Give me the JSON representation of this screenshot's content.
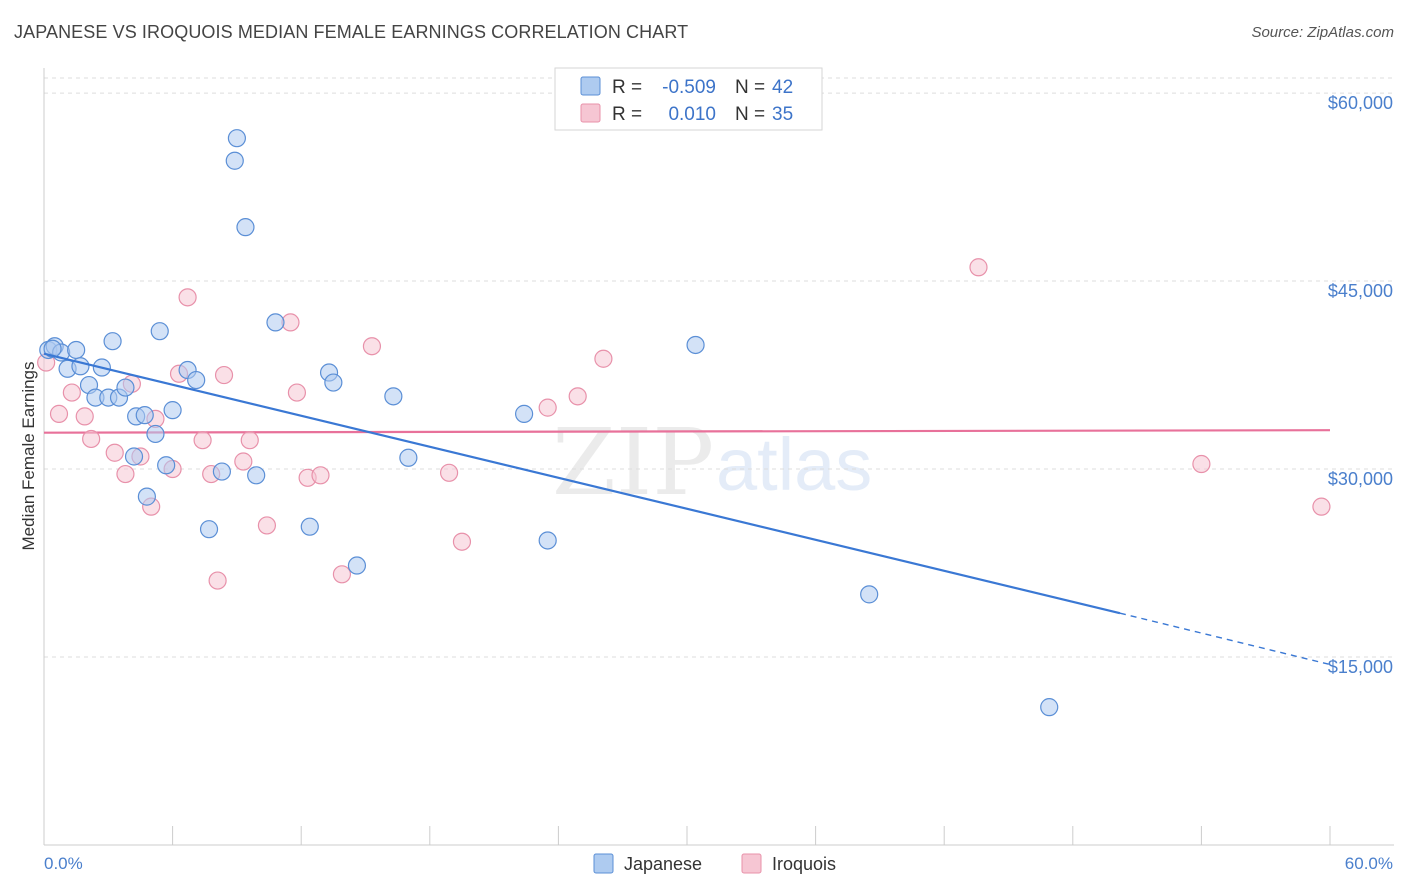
{
  "title": "JAPANESE VS IROQUOIS MEDIAN FEMALE EARNINGS CORRELATION CHART",
  "source": "Source: ZipAtlas.com",
  "colors": {
    "japanese_fill": "#aecbf0",
    "japanese_stroke": "#5b8fd6",
    "japanese_line": "#3a78d4",
    "iroquois_fill": "#f6c6d3",
    "iroquois_stroke": "#e891aa",
    "iroquois_line": "#e8719a",
    "tick_text": "#4a7fcc",
    "grid": "#dddddd"
  },
  "legend": {
    "rows": [
      {
        "r_label": "R =",
        "r_value": "-0.509",
        "n_label": "N =",
        "n_value": "42",
        "series": "japanese"
      },
      {
        "r_label": "R =",
        "r_value": "0.010",
        "n_label": "N =",
        "n_value": "35",
        "series": "iroquois"
      }
    ]
  },
  "watermark": {
    "zip": "ZIP",
    "atlas": "atlas"
  },
  "chart_data": {
    "type": "scatter",
    "title": "JAPANESE VS IROQUOIS MEDIAN FEMALE EARNINGS CORRELATION CHART",
    "xlabel": "",
    "ylabel": "Median Female Earnings",
    "xlim": [
      0,
      60
    ],
    "ylim": [
      0,
      62000
    ],
    "x_tick_labels": [
      "0.0%",
      "60.0%"
    ],
    "y_ticks": [
      15000,
      30000,
      45000,
      60000
    ],
    "y_tick_labels": [
      "$15,000",
      "$30,000",
      "$45,000",
      "$60,000"
    ],
    "grid": true,
    "legend_position": "top-center",
    "series": [
      {
        "name": "Japanese",
        "r": -0.509,
        "n": 42,
        "trend": {
          "x0": 0,
          "y0": 39200,
          "x1": 50.2,
          "y1": 18500,
          "dashed_to_x": 60,
          "dashed_to_y": 14400
        },
        "points": [
          [
            0.2,
            39500
          ],
          [
            0.5,
            39800
          ],
          [
            0.8,
            39300
          ],
          [
            1.1,
            38000
          ],
          [
            1.5,
            39500
          ],
          [
            1.7,
            38200
          ],
          [
            2.1,
            36700
          ],
          [
            2.4,
            35700
          ],
          [
            2.7,
            38100
          ],
          [
            3.0,
            35700
          ],
          [
            3.2,
            40200
          ],
          [
            3.5,
            35700
          ],
          [
            3.8,
            36500
          ],
          [
            4.2,
            31000
          ],
          [
            4.3,
            34200
          ],
          [
            4.7,
            34300
          ],
          [
            4.8,
            27800
          ],
          [
            5.2,
            32800
          ],
          [
            5.4,
            41000
          ],
          [
            5.7,
            30300
          ],
          [
            6.0,
            34700
          ],
          [
            6.7,
            37900
          ],
          [
            7.1,
            37100
          ],
          [
            7.7,
            25200
          ],
          [
            8.3,
            29800
          ],
          [
            8.9,
            54600
          ],
          [
            9.0,
            56400
          ],
          [
            9.4,
            49300
          ],
          [
            9.9,
            29500
          ],
          [
            10.8,
            41700
          ],
          [
            12.4,
            25400
          ],
          [
            13.3,
            37700
          ],
          [
            13.5,
            36900
          ],
          [
            14.6,
            22300
          ],
          [
            16.3,
            35800
          ],
          [
            17.0,
            30900
          ],
          [
            22.4,
            34400
          ],
          [
            23.5,
            24300
          ],
          [
            30.4,
            39900
          ],
          [
            38.5,
            20000
          ],
          [
            46.9,
            11000
          ],
          [
            0.4,
            39600
          ]
        ]
      },
      {
        "name": "Iroquois",
        "r": 0.01,
        "n": 35,
        "trend": {
          "x0": 0,
          "y0": 32900,
          "x1": 60,
          "y1": 33100
        },
        "points": [
          [
            0.1,
            38500
          ],
          [
            0.7,
            34400
          ],
          [
            1.3,
            36100
          ],
          [
            1.9,
            34200
          ],
          [
            2.2,
            32400
          ],
          [
            3.3,
            31300
          ],
          [
            3.8,
            29600
          ],
          [
            4.1,
            36800
          ],
          [
            4.5,
            31000
          ],
          [
            5.0,
            27000
          ],
          [
            5.2,
            34000
          ],
          [
            6.0,
            30000
          ],
          [
            6.3,
            37600
          ],
          [
            6.7,
            43700
          ],
          [
            7.4,
            32300
          ],
          [
            7.8,
            29600
          ],
          [
            8.1,
            21100
          ],
          [
            8.4,
            37500
          ],
          [
            9.3,
            30600
          ],
          [
            9.6,
            32300
          ],
          [
            10.4,
            25500
          ],
          [
            11.5,
            41700
          ],
          [
            11.8,
            36100
          ],
          [
            12.3,
            29300
          ],
          [
            12.9,
            29500
          ],
          [
            13.9,
            21600
          ],
          [
            15.3,
            39800
          ],
          [
            18.9,
            29700
          ],
          [
            19.5,
            24200
          ],
          [
            23.5,
            34900
          ],
          [
            24.9,
            35800
          ],
          [
            26.1,
            38800
          ],
          [
            43.6,
            46100
          ],
          [
            54.0,
            30400
          ],
          [
            59.6,
            27000
          ]
        ]
      }
    ]
  }
}
